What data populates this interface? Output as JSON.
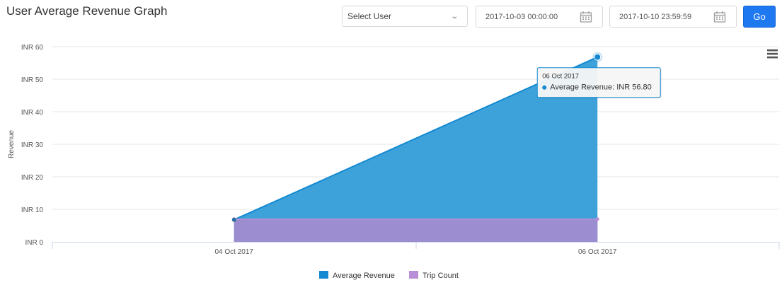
{
  "header": {
    "title": "User Average Revenue Graph",
    "user_select": "Select User",
    "date_from": "2017-10-03 00:00:00",
    "date_to": "2017-10-10 23:59:59",
    "go_label": "Go"
  },
  "colors": {
    "revenue": "#1389d1",
    "revenue_fill": "#3aa0d9",
    "trips": "#b88ed6",
    "trips_fill": "#9b8dcf",
    "accent": "#1e78f0"
  },
  "chart_data": {
    "type": "area",
    "title": "",
    "xlabel": "",
    "ylabel": "Revenue",
    "ylim": [
      0,
      60
    ],
    "yticks": [
      0,
      10,
      20,
      30,
      40,
      50,
      60
    ],
    "ytick_labels": [
      "INR 0",
      "INR 10",
      "INR 20",
      "INR 30",
      "INR 40",
      "INR 50",
      "INR 60"
    ],
    "x_range": [
      "2017-10-03",
      "2017-10-07"
    ],
    "xticks": [
      "2017-10-04",
      "2017-10-06"
    ],
    "xtick_labels": [
      "04 Oct 2017",
      "06 Oct 2017"
    ],
    "grid": true,
    "legend_position": "bottom",
    "series": [
      {
        "name": "Average Revenue",
        "x": [
          "2017-10-04",
          "2017-10-06"
        ],
        "values": [
          6.8,
          56.8
        ]
      },
      {
        "name": "Trip Count",
        "x": [
          "2017-10-04",
          "2017-10-06"
        ],
        "values": [
          7,
          7
        ]
      }
    ],
    "tooltip": {
      "date": "06 Oct 2017",
      "series": "Average Revenue",
      "value_text": "INR 56.80"
    }
  }
}
